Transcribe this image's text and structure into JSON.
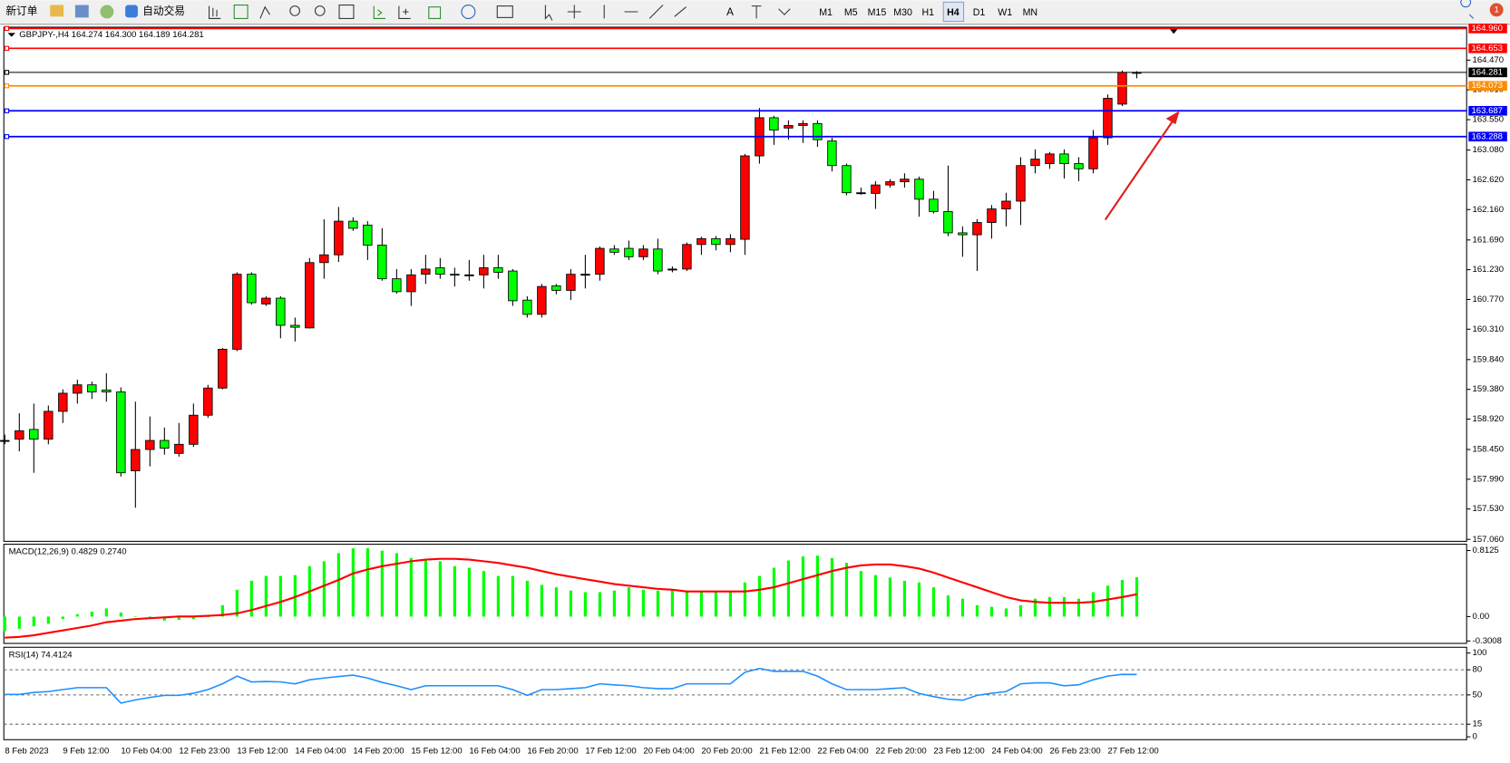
{
  "toolbar": {
    "buttons": [
      "新订单",
      "自动交易"
    ],
    "timeframes": [
      "M1",
      "M5",
      "M15",
      "M30",
      "H1",
      "H4",
      "D1",
      "W1",
      "MN"
    ],
    "active_timeframe": 5,
    "notifications": 1
  },
  "chart_data": [
    {
      "type": "candlestick",
      "title": "GBPJPY-,H4  164.274 164.300 164.189 164.281",
      "up_color": "#ff0000",
      "down_color": "#00ff00",
      "grid": false,
      "ylim": [
        157.03,
        164.98
      ],
      "yticks": [
        {
          "value": 164.47,
          "label": "164.470"
        },
        {
          "value": 164.01,
          "label": "164.010"
        },
        {
          "value": 163.55,
          "label": "163.550"
        },
        {
          "value": 163.08,
          "label": "163.080"
        },
        {
          "value": 162.62,
          "label": "162.620"
        },
        {
          "value": 162.16,
          "label": "162.160"
        },
        {
          "value": 161.69,
          "label": "161.690"
        },
        {
          "value": 161.23,
          "label": "161.230"
        },
        {
          "value": 160.77,
          "label": "160.770"
        },
        {
          "value": 160.31,
          "label": "160.310"
        },
        {
          "value": 159.84,
          "label": "159.840"
        },
        {
          "value": 159.38,
          "label": "159.380"
        },
        {
          "value": 158.92,
          "label": "158.920"
        },
        {
          "value": 158.45,
          "label": "158.450"
        },
        {
          "value": 157.99,
          "label": "157.990"
        },
        {
          "value": 157.53,
          "label": "157.530"
        },
        {
          "value": 157.06,
          "label": "157.060"
        }
      ],
      "levels": [
        {
          "value": 164.96,
          "label": "164.960",
          "color": "#ff0000"
        },
        {
          "value": 164.653,
          "label": "164.653",
          "color": "#ff0000"
        },
        {
          "value": 164.281,
          "label": "164.281",
          "color": "#000000"
        },
        {
          "value": 164.073,
          "label": "164.073",
          "color": "#ff8c00"
        },
        {
          "value": 163.687,
          "label": "163.687",
          "color": "#0000ff"
        },
        {
          "value": 163.288,
          "label": "163.288",
          "color": "#0000ff"
        }
      ],
      "categories": [
        "8 Feb 2023",
        null,
        null,
        null,
        "9 Feb 12:00",
        null,
        null,
        null,
        "10 Feb 04:00",
        null,
        null,
        null,
        "12 Feb 23:00",
        null,
        null,
        null,
        "13 Feb 12:00",
        null,
        null,
        null,
        "14 Feb 04:00",
        null,
        null,
        null,
        "14 Feb 20:00",
        null,
        null,
        null,
        "15 Feb 12:00",
        null,
        null,
        null,
        "16 Feb 04:00",
        null,
        null,
        null,
        "16 Feb 20:00",
        null,
        null,
        null,
        "17 Feb 12:00",
        null,
        null,
        null,
        "20 Feb 04:00",
        null,
        null,
        null,
        "20 Feb 20:00",
        null,
        null,
        null,
        "21 Feb 12:00",
        null,
        null,
        null,
        "22 Feb 04:00",
        null,
        null,
        null,
        "22 Feb 20:00",
        null,
        null,
        null,
        "23 Feb 12:00",
        null,
        null,
        null,
        "24 Feb 04:00",
        null,
        null,
        null,
        "26 Feb 23:00",
        null,
        null,
        null,
        "27 Feb 12:00",
        null,
        null
      ],
      "ohlc": [
        [
          158.59,
          158.68,
          158.53,
          158.59
        ],
        [
          158.61,
          159.01,
          158.42,
          158.74
        ],
        [
          158.76,
          159.16,
          158.09,
          158.61
        ],
        [
          158.61,
          159.13,
          158.53,
          159.04
        ],
        [
          159.04,
          159.38,
          158.86,
          159.32
        ],
        [
          159.32,
          159.53,
          159.16,
          159.45
        ],
        [
          159.45,
          159.5,
          159.23,
          159.34
        ],
        [
          159.37,
          159.63,
          159.19,
          159.34
        ],
        [
          159.34,
          159.41,
          158.03,
          158.09
        ],
        [
          158.12,
          159.19,
          157.55,
          158.45
        ],
        [
          158.45,
          158.96,
          158.19,
          158.59
        ],
        [
          158.59,
          158.79,
          158.37,
          158.47
        ],
        [
          158.39,
          158.86,
          158.34,
          158.53
        ],
        [
          158.53,
          159.16,
          158.49,
          158.98
        ],
        [
          158.98,
          159.45,
          158.94,
          159.4
        ],
        [
          159.4,
          160.02,
          159.38,
          160.0
        ],
        [
          160.0,
          161.19,
          159.97,
          161.16
        ],
        [
          161.16,
          161.19,
          160.69,
          160.72
        ],
        [
          160.7,
          160.82,
          160.67,
          160.79
        ],
        [
          160.79,
          160.82,
          160.17,
          160.37
        ],
        [
          160.37,
          160.49,
          160.12,
          160.34
        ],
        [
          160.33,
          161.41,
          160.32,
          161.34
        ],
        [
          161.34,
          162.01,
          161.09,
          161.46
        ],
        [
          161.46,
          162.2,
          161.35,
          161.98
        ],
        [
          161.98,
          162.04,
          161.83,
          161.87
        ],
        [
          161.92,
          161.98,
          161.38,
          161.61
        ],
        [
          161.61,
          161.87,
          161.06,
          161.09
        ],
        [
          161.09,
          161.24,
          160.86,
          160.89
        ],
        [
          160.89,
          161.24,
          160.67,
          161.15
        ],
        [
          161.16,
          161.46,
          161.01,
          161.24
        ],
        [
          161.26,
          161.41,
          161.09,
          161.16
        ],
        [
          161.16,
          161.26,
          160.97,
          161.15
        ],
        [
          161.15,
          161.38,
          161.06,
          161.15
        ],
        [
          161.15,
          161.46,
          160.94,
          161.26
        ],
        [
          161.26,
          161.46,
          161.09,
          161.19
        ],
        [
          161.21,
          161.24,
          160.67,
          160.75
        ],
        [
          160.76,
          160.82,
          160.49,
          160.54
        ],
        [
          160.54,
          161.01,
          160.49,
          160.97
        ],
        [
          160.98,
          161.01,
          160.85,
          160.91
        ],
        [
          160.91,
          161.24,
          160.76,
          161.16
        ],
        [
          161.16,
          161.46,
          160.94,
          161.16
        ],
        [
          161.16,
          161.59,
          161.06,
          161.56
        ],
        [
          161.55,
          161.61,
          161.46,
          161.5
        ],
        [
          161.56,
          161.68,
          161.38,
          161.43
        ],
        [
          161.43,
          161.61,
          161.38,
          161.55
        ],
        [
          161.55,
          161.71,
          161.16,
          161.21
        ],
        [
          161.24,
          161.28,
          161.19,
          161.24
        ],
        [
          161.24,
          161.65,
          161.21,
          161.62
        ],
        [
          161.62,
          161.74,
          161.46,
          161.71
        ],
        [
          161.71,
          161.75,
          161.53,
          161.62
        ],
        [
          161.62,
          161.78,
          161.5,
          161.71
        ],
        [
          161.7,
          163.02,
          161.46,
          162.99
        ],
        [
          162.99,
          163.73,
          162.87,
          163.58
        ],
        [
          163.58,
          163.61,
          163.16,
          163.39
        ],
        [
          163.42,
          163.54,
          163.24,
          163.46
        ],
        [
          163.46,
          163.54,
          163.19,
          163.49
        ],
        [
          163.49,
          163.54,
          163.13,
          163.24
        ],
        [
          163.22,
          163.27,
          162.75,
          162.84
        ],
        [
          162.84,
          162.87,
          162.38,
          162.42
        ],
        [
          162.42,
          162.5,
          162.39,
          162.42
        ],
        [
          162.41,
          162.6,
          162.17,
          162.54
        ],
        [
          162.54,
          162.63,
          162.5,
          162.59
        ],
        [
          162.59,
          162.72,
          162.5,
          162.63
        ],
        [
          162.63,
          162.67,
          162.05,
          162.32
        ],
        [
          162.32,
          162.45,
          162.1,
          162.13
        ],
        [
          162.13,
          162.84,
          161.75,
          161.8
        ],
        [
          161.8,
          161.9,
          161.43,
          161.77
        ],
        [
          161.77,
          162.01,
          161.21,
          161.96
        ],
        [
          161.96,
          162.23,
          161.71,
          162.17
        ],
        [
          162.17,
          162.42,
          161.9,
          162.29
        ],
        [
          162.29,
          162.97,
          161.92,
          162.84
        ],
        [
          162.84,
          163.09,
          162.72,
          162.94
        ],
        [
          162.87,
          163.05,
          162.79,
          163.02
        ],
        [
          163.02,
          163.09,
          162.64,
          162.87
        ],
        [
          162.87,
          162.97,
          162.6,
          162.79
        ],
        [
          162.79,
          163.39,
          162.72,
          163.27
        ],
        [
          163.27,
          163.94,
          163.16,
          163.88
        ],
        [
          163.79,
          164.31,
          163.76,
          164.28
        ],
        [
          164.274,
          164.3,
          164.189,
          164.281
        ]
      ]
    },
    {
      "type": "macd",
      "title": "MACD(12,26,9) 0.4829 0.2740",
      "ylim": [
        -0.33,
        0.89
      ],
      "yticks": [
        0.8125,
        {
          "value": 0,
          "label": "0.00"
        },
        -0.3008
      ],
      "series": [
        {
          "style": "bar",
          "color": "#00ff00",
          "values": [
            -0.18,
            -0.15,
            -0.12,
            -0.09,
            -0.03,
            0.03,
            0.06,
            0.1,
            0.05,
            0.0,
            -0.01,
            -0.05,
            -0.04,
            -0.03,
            0.0,
            0.14,
            0.33,
            0.44,
            0.5,
            0.5,
            0.51,
            0.62,
            0.68,
            0.78,
            0.84,
            0.84,
            0.81,
            0.78,
            0.72,
            0.69,
            0.68,
            0.62,
            0.6,
            0.56,
            0.5,
            0.5,
            0.44,
            0.39,
            0.36,
            0.32,
            0.3,
            0.3,
            0.32,
            0.36,
            0.33,
            0.32,
            0.32,
            0.3,
            0.3,
            0.31,
            0.31,
            0.42,
            0.5,
            0.6,
            0.69,
            0.74,
            0.75,
            0.72,
            0.66,
            0.56,
            0.51,
            0.48,
            0.44,
            0.42,
            0.36,
            0.26,
            0.22,
            0.14,
            0.12,
            0.1,
            0.14,
            0.22,
            0.24,
            0.24,
            0.22,
            0.3,
            0.38,
            0.45,
            0.4829
          ]
        },
        {
          "style": "line",
          "color": "#ff0000",
          "values": [
            -0.26,
            -0.25,
            -0.23,
            -0.2,
            -0.17,
            -0.14,
            -0.11,
            -0.07,
            -0.05,
            -0.03,
            -0.02,
            -0.01,
            0.0,
            0.0,
            0.01,
            0.02,
            0.04,
            0.08,
            0.13,
            0.18,
            0.24,
            0.31,
            0.38,
            0.45,
            0.53,
            0.58,
            0.62,
            0.65,
            0.68,
            0.7,
            0.71,
            0.71,
            0.7,
            0.68,
            0.66,
            0.63,
            0.6,
            0.56,
            0.52,
            0.49,
            0.46,
            0.43,
            0.4,
            0.38,
            0.36,
            0.34,
            0.33,
            0.31,
            0.31,
            0.31,
            0.31,
            0.31,
            0.33,
            0.36,
            0.41,
            0.46,
            0.51,
            0.56,
            0.6,
            0.63,
            0.64,
            0.64,
            0.62,
            0.59,
            0.54,
            0.48,
            0.42,
            0.36,
            0.3,
            0.24,
            0.2,
            0.18,
            0.17,
            0.17,
            0.17,
            0.18,
            0.21,
            0.24,
            0.274
          ]
        }
      ]
    },
    {
      "type": "line",
      "title": "RSI(14) 74.4124",
      "ylim": [
        0,
        100
      ],
      "yticks": [
        100,
        80,
        50,
        15,
        0
      ],
      "levels": [
        80,
        50,
        15
      ],
      "series": [
        {
          "color": "#1e90ff",
          "values": [
            50.6,
            50.6,
            52.9,
            54,
            56.3,
            58.6,
            58.6,
            58.6,
            40.2,
            44,
            47,
            49.4,
            49.4,
            52,
            56.3,
            63.2,
            72.4,
            65.5,
            66,
            65.5,
            63.2,
            68,
            70.1,
            72,
            73.6,
            70.1,
            65,
            60.9,
            56.3,
            60.9,
            60.9,
            60.9,
            60.9,
            60.9,
            60.9,
            56.3,
            49.4,
            56.3,
            56.3,
            57.5,
            58.6,
            63.2,
            62,
            60.9,
            58.6,
            57.5,
            57.5,
            63.2,
            63.2,
            63.2,
            63.2,
            77,
            81.6,
            78.2,
            78.2,
            78.2,
            72.4,
            63.2,
            56.3,
            56.3,
            56.3,
            57.5,
            58.6,
            51.7,
            48,
            44.8,
            43.7,
            49.4,
            52,
            54,
            63.2,
            64.4,
            64.4,
            60.9,
            62.1,
            68,
            72.4,
            74.5,
            74.41
          ]
        }
      ]
    }
  ]
}
